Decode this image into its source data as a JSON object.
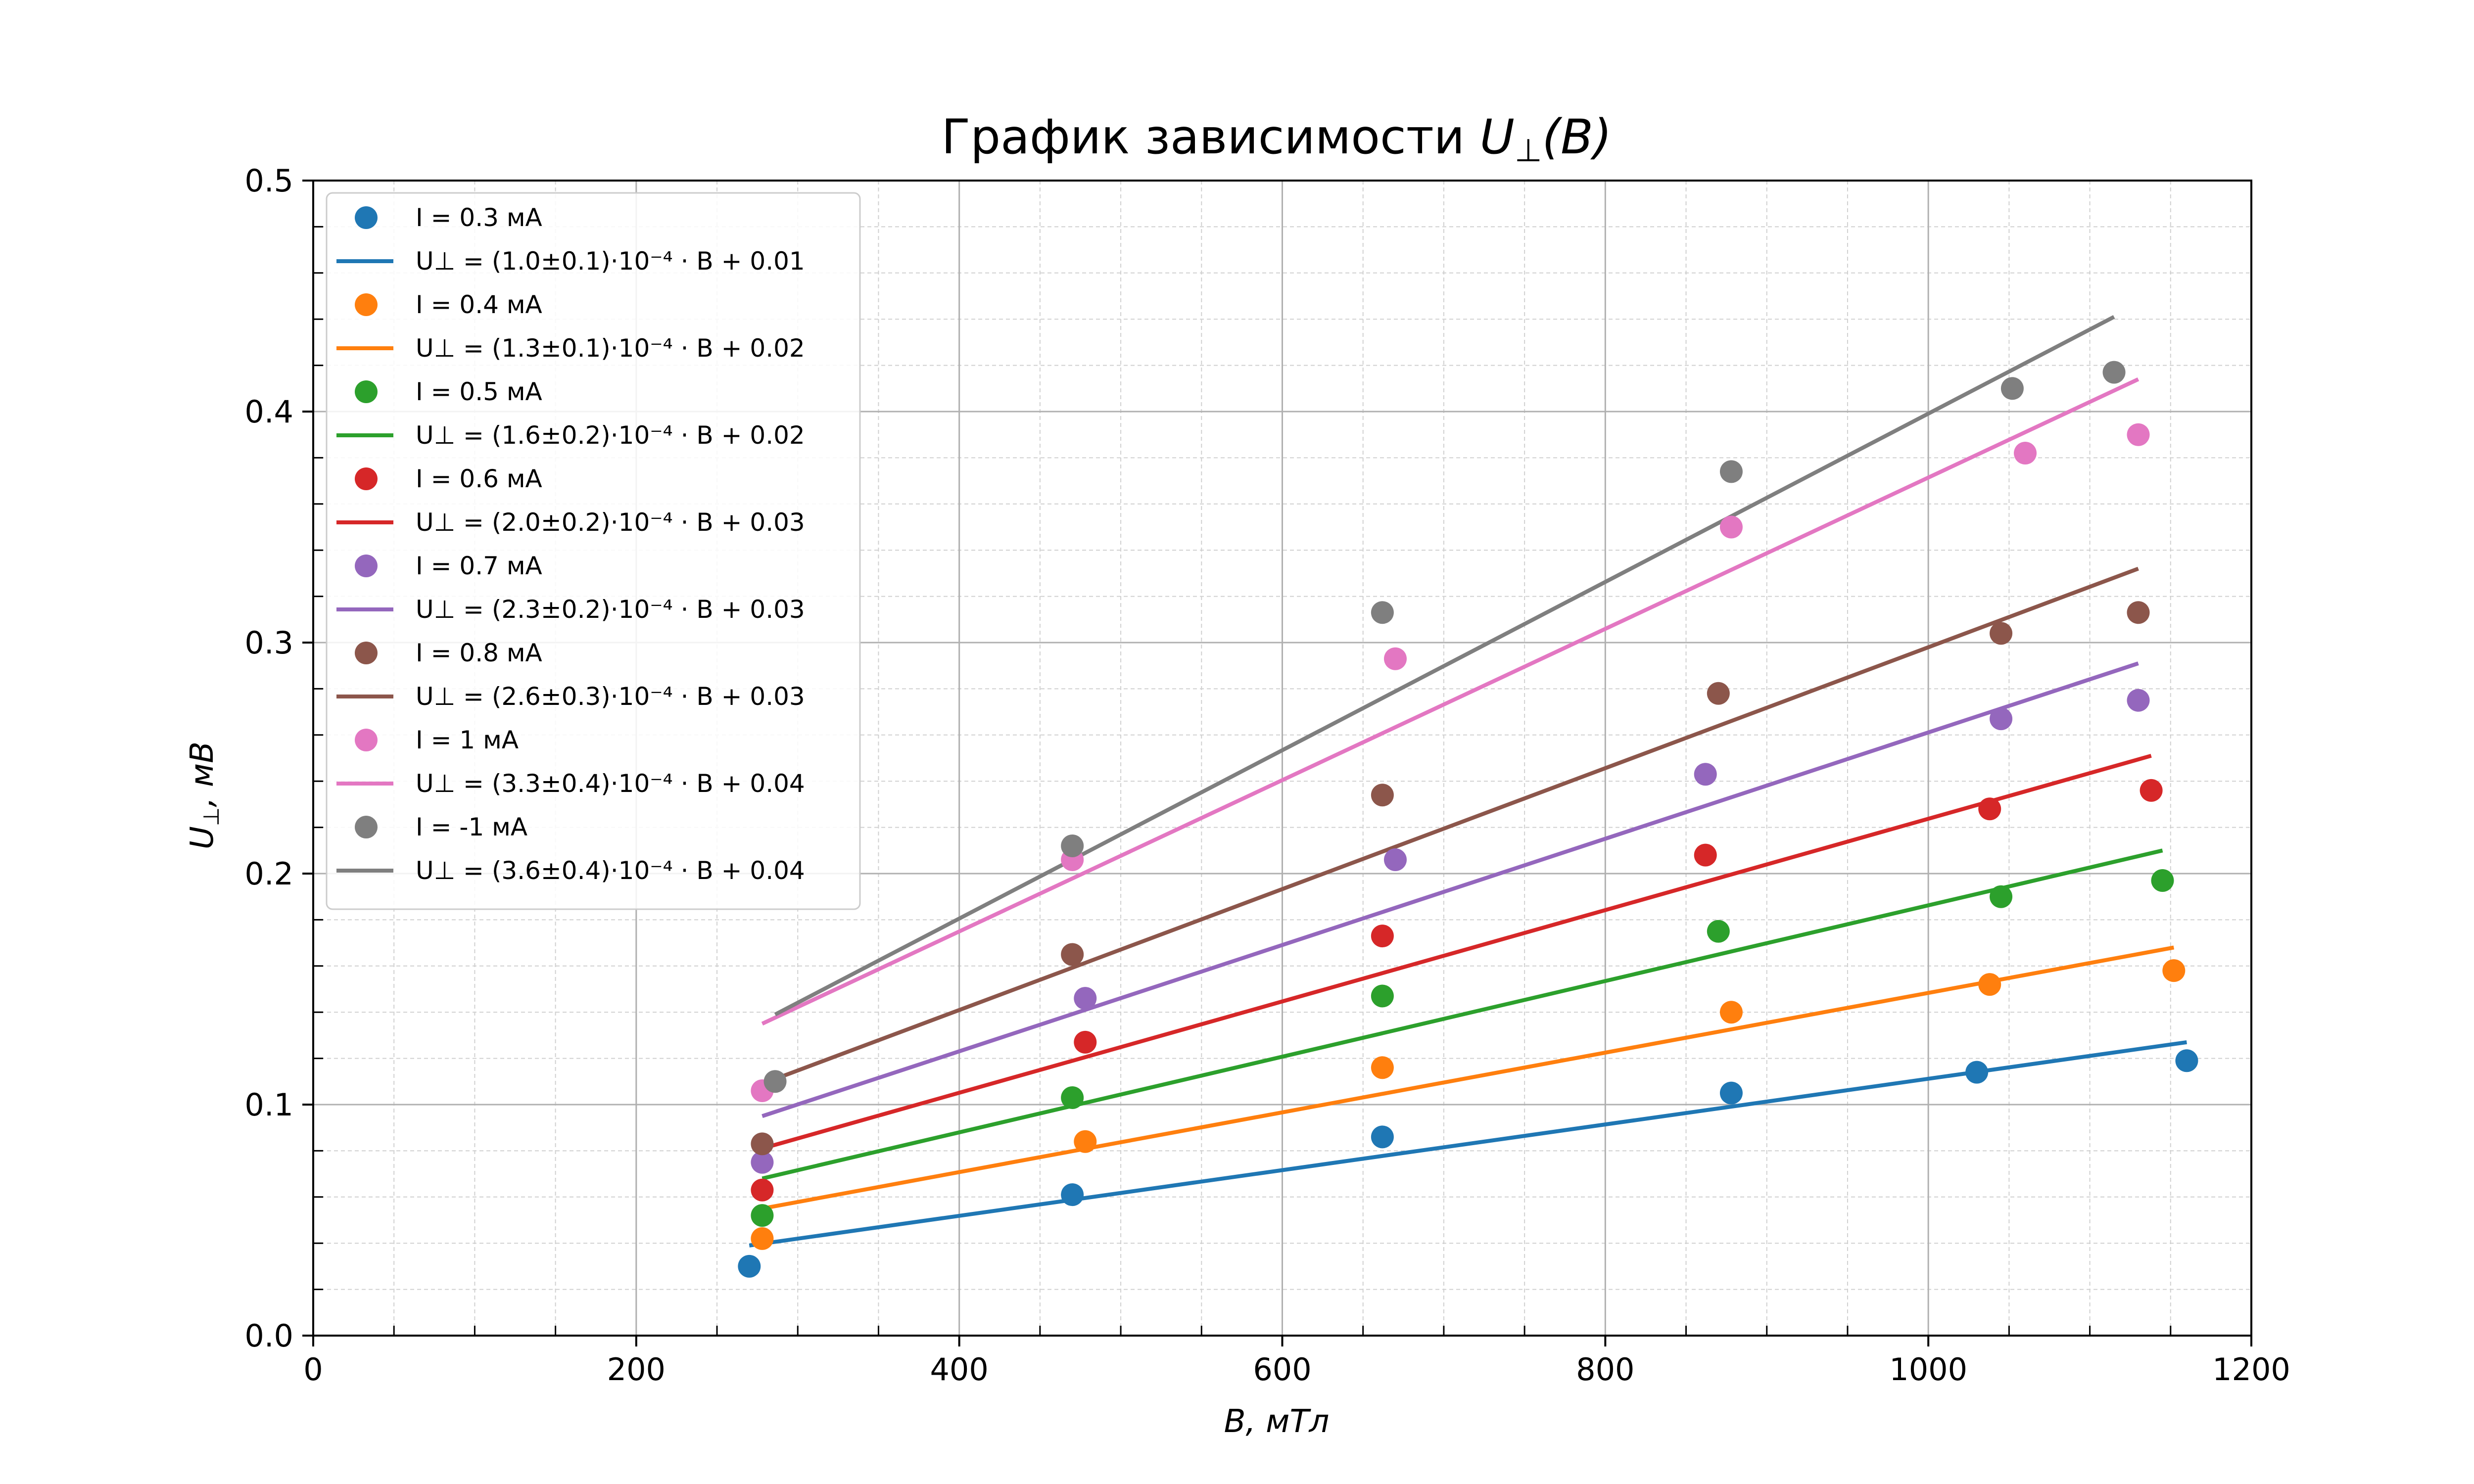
{
  "chart_data": {
    "type": "scatter",
    "title": {
      "main": "График зависимости ",
      "var": "U",
      "sub": "⊥",
      "arg": "(B)"
    },
    "xlabel": "B, мТл",
    "ylabel": {
      "var": "U",
      "sub": "⊥",
      "rest": ", мВ"
    },
    "xlim": [
      0,
      1200
    ],
    "ylim": [
      0,
      0.5
    ],
    "xticks": [
      "0",
      "200",
      "400",
      "600",
      "800",
      "1000",
      "1200"
    ],
    "yticks": [
      "0.0",
      "0.1",
      "0.2",
      "0.3",
      "0.4",
      "0.5"
    ],
    "grid": true,
    "minor_grid": true,
    "legend_position": "upper-left",
    "series": [
      {
        "name": "I = 0.3 мА",
        "color": "#1f77b4",
        "points": [
          [
            270,
            0.03
          ],
          [
            470,
            0.061
          ],
          [
            662,
            0.086
          ],
          [
            878,
            0.105
          ],
          [
            1030,
            0.114
          ],
          [
            1160,
            0.119
          ]
        ],
        "fit": {
          "label": "U⊥ = (1.0±0.1)·10⁻⁴ · B + 0.01",
          "coef": "(1.0±0.1)",
          "intercept": "0.01",
          "x": [
            270,
            1160
          ],
          "y": [
            0.039,
            0.127
          ]
        }
      },
      {
        "name": "I = 0.4 мА",
        "color": "#ff7f0e",
        "points": [
          [
            278,
            0.042
          ],
          [
            478,
            0.084
          ],
          [
            662,
            0.116
          ],
          [
            878,
            0.14
          ],
          [
            1038,
            0.152
          ],
          [
            1152,
            0.158
          ]
        ],
        "fit": {
          "label": "U⊥ = (1.3±0.1)·10⁻⁴ · B + 0.02",
          "coef": "(1.3±0.1)",
          "intercept": "0.02",
          "x": [
            278,
            1152
          ],
          "y": [
            0.055,
            0.168
          ]
        }
      },
      {
        "name": "I = 0.5 мА",
        "color": "#2ca02c",
        "points": [
          [
            278,
            0.052
          ],
          [
            470,
            0.103
          ],
          [
            662,
            0.147
          ],
          [
            870,
            0.175
          ],
          [
            1045,
            0.19
          ],
          [
            1145,
            0.197
          ]
        ],
        "fit": {
          "label": "U⊥ = (1.6±0.2)·10⁻⁴ · B + 0.02",
          "coef": "(1.6±0.2)",
          "intercept": "0.02",
          "x": [
            278,
            1145
          ],
          "y": [
            0.068,
            0.21
          ]
        }
      },
      {
        "name": "I = 0.6 мА",
        "color": "#d62728",
        "points": [
          [
            278,
            0.063
          ],
          [
            478,
            0.127
          ],
          [
            662,
            0.173
          ],
          [
            862,
            0.208
          ],
          [
            1038,
            0.228
          ],
          [
            1138,
            0.236
          ]
        ],
        "fit": {
          "label": "U⊥ = (2.0±0.2)·10⁻⁴ · B + 0.03",
          "coef": "(2.0±0.2)",
          "intercept": "0.03",
          "x": [
            278,
            1138
          ],
          "y": [
            0.081,
            0.251
          ]
        }
      },
      {
        "name": "I = 0.7 мА",
        "color": "#9467bd",
        "points": [
          [
            278,
            0.075
          ],
          [
            478,
            0.146
          ],
          [
            670,
            0.206
          ],
          [
            862,
            0.243
          ],
          [
            1045,
            0.267
          ],
          [
            1130,
            0.275
          ]
        ],
        "fit": {
          "label": "U⊥ = (2.3±0.2)·10⁻⁴ · B + 0.03",
          "coef": "(2.3±0.2)",
          "intercept": "0.03",
          "x": [
            278,
            1130
          ],
          "y": [
            0.095,
            0.291
          ]
        }
      },
      {
        "name": "I = 0.8 мА",
        "color": "#8c564b",
        "points": [
          [
            278,
            0.083
          ],
          [
            470,
            0.165
          ],
          [
            662,
            0.234
          ],
          [
            870,
            0.278
          ],
          [
            1045,
            0.304
          ],
          [
            1130,
            0.313
          ]
        ],
        "fit": {
          "label": "U⊥ = (2.6±0.3)·10⁻⁴ · B + 0.03",
          "coef": "(2.6±0.3)",
          "intercept": "0.03",
          "x": [
            278,
            1130
          ],
          "y": [
            0.109,
            0.332
          ]
        }
      },
      {
        "name": "I = 1 мА",
        "color": "#e377c2",
        "points": [
          [
            278,
            0.106
          ],
          [
            470,
            0.206
          ],
          [
            670,
            0.293
          ],
          [
            878,
            0.35
          ],
          [
            1060,
            0.382
          ],
          [
            1130,
            0.39
          ]
        ],
        "fit": {
          "label": "U⊥ = (3.3±0.4)·10⁻⁴ · B + 0.04",
          "coef": "(3.3±0.4)",
          "intercept": "0.04",
          "x": [
            278,
            1130
          ],
          "y": [
            0.135,
            0.414
          ]
        }
      },
      {
        "name": "I = -1 мА",
        "color": "#7f7f7f",
        "points": [
          [
            286,
            0.11
          ],
          [
            470,
            0.212
          ],
          [
            662,
            0.313
          ],
          [
            878,
            0.374
          ],
          [
            1052,
            0.41
          ],
          [
            1115,
            0.417
          ]
        ],
        "fit": {
          "label": "U⊥ = (3.6±0.4)·10⁻⁴ · B + 0.04",
          "coef": "(3.6±0.4)",
          "intercept": "0.04",
          "x": [
            286,
            1115
          ],
          "y": [
            0.139,
            0.441
          ]
        }
      }
    ]
  }
}
